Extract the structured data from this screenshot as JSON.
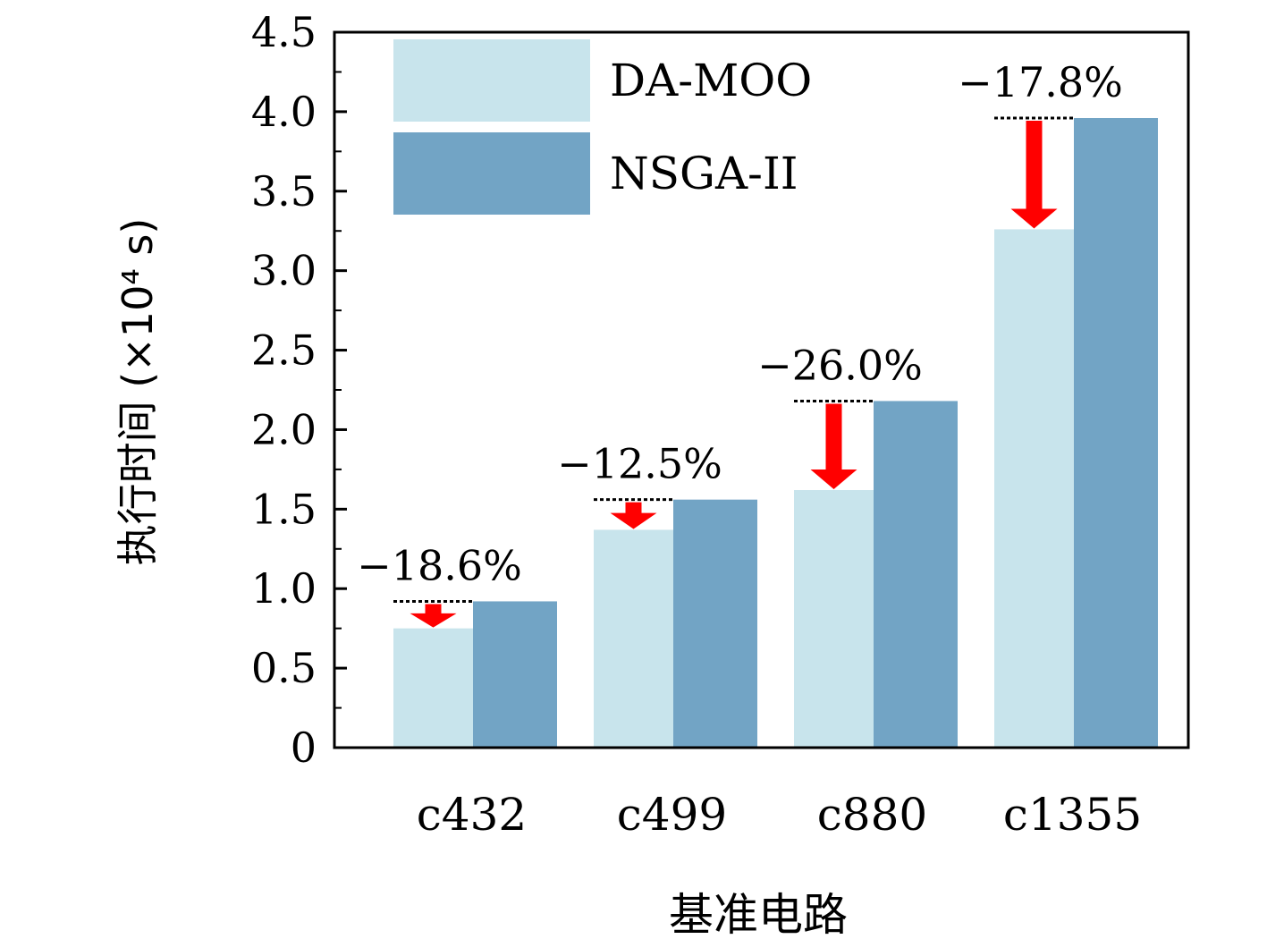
{
  "chart_data": {
    "type": "bar",
    "xlabel": "基准电路",
    "ylabel": "执行时间 (×10⁴ s)",
    "categories": [
      "c432",
      "c499",
      "c880",
      "c1355"
    ],
    "series": [
      {
        "name": "DA-MOO",
        "color": "#c8e4ec",
        "values": [
          0.75,
          1.37,
          1.62,
          3.26
        ]
      },
      {
        "name": "NSGA-II",
        "color": "#72a4c5",
        "values": [
          0.92,
          1.56,
          2.18,
          3.96
        ]
      }
    ],
    "annotations": [
      "−18.6%",
      "−12.5%",
      "−26.0%",
      "−17.8%"
    ],
    "yticks": [
      "0",
      "0.5",
      "1.0",
      "1.5",
      "2.0",
      "2.5",
      "3.0",
      "3.5",
      "4.0",
      "4.5"
    ],
    "ylim": [
      0,
      4.5
    ],
    "legend_position": "top-left",
    "arrow_color": "#ff0000",
    "grid": false
  }
}
